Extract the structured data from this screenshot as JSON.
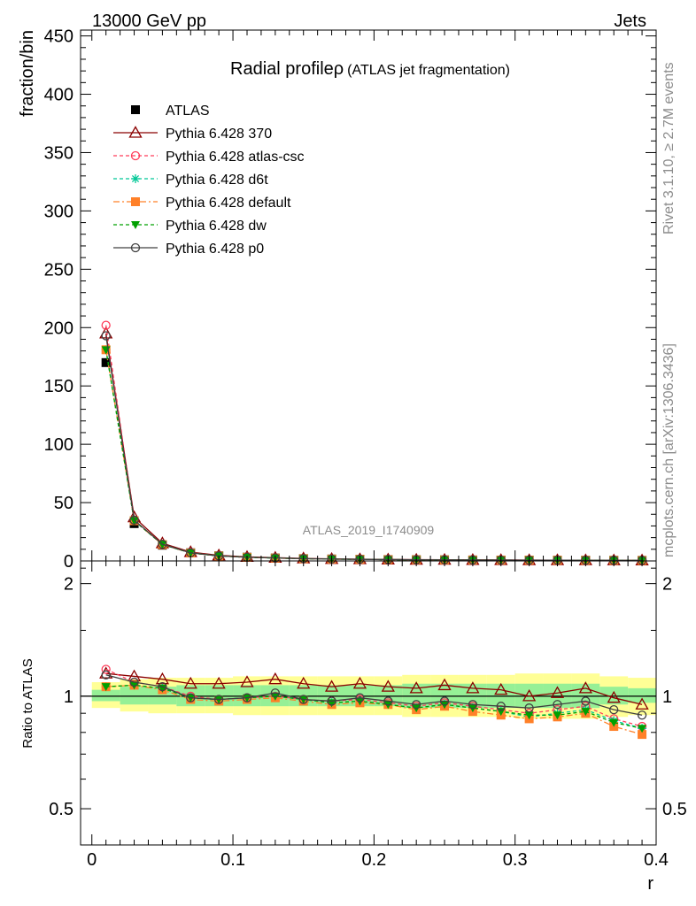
{
  "header": {
    "left": "13000 GeV pp",
    "right": "Jets",
    "side_top": "Rivet 3.1.10, ≥ 2.7M events",
    "side_bottom": "mcplots.cern.ch [arXiv:1306.3436]"
  },
  "chart_data": [
    {
      "type": "line",
      "panel": "main",
      "title": "Radial profile",
      "title_symbol": "ρ",
      "subtitle": "(ATLAS jet fragmentation)",
      "watermark": "ATLAS_2019_I1740909",
      "ylabel": "fraction/bin",
      "xlim": [
        -0.008,
        0.4
      ],
      "ylim": [
        0,
        455
      ],
      "yticks": [
        0,
        50,
        100,
        150,
        200,
        250,
        300,
        350,
        400,
        450
      ],
      "legend_position": "top-left",
      "x": [
        0.01,
        0.03,
        0.05,
        0.07,
        0.09,
        0.11,
        0.13,
        0.15,
        0.17,
        0.19,
        0.21,
        0.23,
        0.25,
        0.27,
        0.29,
        0.31,
        0.33,
        0.35,
        0.37,
        0.39
      ],
      "series": [
        {
          "name": "ATLAS",
          "color": "#000000",
          "marker": "square-filled",
          "dash": "",
          "values": [
            170,
            32,
            13.5,
            7.0,
            4.4,
            3.2,
            2.5,
            2.0,
            1.65,
            1.4,
            1.2,
            1.05,
            0.95,
            0.85,
            0.78,
            0.72,
            0.66,
            0.6,
            0.55,
            0.5
          ]
        },
        {
          "name": "Pythia 6.428 370",
          "color": "#8b0000",
          "marker": "triangle-open",
          "dash": "",
          "values": [
            195,
            37.5,
            15.2,
            7.6,
            4.8,
            3.5,
            2.8,
            2.2,
            1.75,
            1.5,
            1.27,
            1.1,
            1.02,
            0.9,
            0.82,
            0.72,
            0.68,
            0.64,
            0.55,
            0.48
          ]
        },
        {
          "name": "Pythia 6.428 atlas-csc",
          "color": "#ff3c5a",
          "marker": "circle-open",
          "dash": "4,3",
          "values": [
            202,
            35,
            14.3,
            7.0,
            4.3,
            3.15,
            2.5,
            1.95,
            1.6,
            1.38,
            1.16,
            0.99,
            0.92,
            0.8,
            0.73,
            0.66,
            0.62,
            0.58,
            0.5,
            0.42
          ]
        },
        {
          "name": "Pythia 6.428 d6t",
          "color": "#00c896",
          "marker": "star",
          "dash": "4,3",
          "values": [
            181,
            34.5,
            14.2,
            6.9,
            4.3,
            3.15,
            2.5,
            1.95,
            1.58,
            1.36,
            1.15,
            0.98,
            0.91,
            0.79,
            0.72,
            0.65,
            0.6,
            0.56,
            0.48,
            0.42
          ]
        },
        {
          "name": "Pythia 6.428 default",
          "color": "#ff8028",
          "marker": "square-filled",
          "dash": "7,3,2,3",
          "values": [
            181,
            34.5,
            14.0,
            6.8,
            4.25,
            3.1,
            2.45,
            1.93,
            1.56,
            1.34,
            1.14,
            0.97,
            0.89,
            0.77,
            0.7,
            0.63,
            0.58,
            0.54,
            0.46,
            0.4
          ]
        },
        {
          "name": "Pythia 6.428 dw",
          "color": "#00a000",
          "marker": "triangle-down-filled",
          "dash": "4,3",
          "values": [
            181,
            34.5,
            14.1,
            6.85,
            4.3,
            3.15,
            2.5,
            1.95,
            1.58,
            1.36,
            1.15,
            0.98,
            0.91,
            0.79,
            0.71,
            0.64,
            0.59,
            0.55,
            0.47,
            0.41
          ]
        },
        {
          "name": "Pythia 6.428 p0",
          "color": "#404040",
          "marker": "circle-open",
          "dash": "",
          "values": [
            193,
            35,
            14.3,
            6.9,
            4.3,
            3.15,
            2.55,
            1.96,
            1.6,
            1.39,
            1.17,
            1.0,
            0.93,
            0.81,
            0.74,
            0.67,
            0.63,
            0.58,
            0.51,
            0.45
          ]
        }
      ]
    },
    {
      "type": "line",
      "panel": "ratio",
      "ylabel": "Ratio to ATLAS",
      "xlabel": "r",
      "xlim": [
        -0.008,
        0.4
      ],
      "ylim": [
        0.4,
        2.3
      ],
      "yscale": "log",
      "yticks": [
        "0.5",
        "1",
        "2"
      ],
      "xticks": [
        "0",
        "0.1",
        "0.2",
        "0.3",
        "0.4"
      ],
      "x": [
        0.01,
        0.03,
        0.05,
        0.07,
        0.09,
        0.11,
        0.13,
        0.15,
        0.17,
        0.19,
        0.21,
        0.23,
        0.25,
        0.27,
        0.29,
        0.31,
        0.33,
        0.35,
        0.37,
        0.39
      ],
      "bands": [
        {
          "color": "#ffff96",
          "lo": [
            0.93,
            0.91,
            0.9,
            0.9,
            0.9,
            0.89,
            0.89,
            0.89,
            0.89,
            0.89,
            0.89,
            0.88,
            0.88,
            0.88,
            0.88,
            0.87,
            0.87,
            0.87,
            0.88,
            0.89
          ],
          "hi": [
            1.09,
            1.11,
            1.12,
            1.12,
            1.12,
            1.13,
            1.13,
            1.13,
            1.13,
            1.13,
            1.13,
            1.14,
            1.14,
            1.14,
            1.14,
            1.15,
            1.15,
            1.15,
            1.13,
            1.12
          ]
        },
        {
          "color": "#96f096",
          "lo": [
            0.97,
            0.95,
            0.95,
            0.94,
            0.94,
            0.94,
            0.94,
            0.94,
            0.94,
            0.94,
            0.94,
            0.93,
            0.93,
            0.93,
            0.93,
            0.93,
            0.93,
            0.93,
            0.95,
            0.96
          ],
          "hi": [
            1.04,
            1.06,
            1.06,
            1.07,
            1.07,
            1.07,
            1.07,
            1.07,
            1.07,
            1.07,
            1.07,
            1.08,
            1.08,
            1.08,
            1.08,
            1.08,
            1.08,
            1.08,
            1.06,
            1.05
          ]
        }
      ],
      "series": [
        {
          "name": "Pythia 6.428 370",
          "values": [
            1.15,
            1.13,
            1.11,
            1.08,
            1.08,
            1.09,
            1.11,
            1.08,
            1.06,
            1.08,
            1.06,
            1.05,
            1.07,
            1.05,
            1.04,
            1.0,
            1.02,
            1.05,
            0.99,
            0.95
          ]
        },
        {
          "name": "Pythia 6.428 atlas-csc",
          "values": [
            1.18,
            1.09,
            1.06,
            1.0,
            0.98,
            0.99,
            1.0,
            0.98,
            0.97,
            0.98,
            0.96,
            0.94,
            0.96,
            0.94,
            0.92,
            0.9,
            0.92,
            0.94,
            0.87,
            0.83
          ]
        },
        {
          "name": "Pythia 6.428 d6t",
          "values": [
            1.06,
            1.07,
            1.05,
            0.99,
            0.98,
            0.99,
            1.0,
            0.98,
            0.96,
            0.97,
            0.95,
            0.93,
            0.95,
            0.93,
            0.91,
            0.88,
            0.9,
            0.92,
            0.86,
            0.82
          ]
        },
        {
          "name": "Pythia 6.428 default",
          "values": [
            1.06,
            1.07,
            1.04,
            0.98,
            0.97,
            0.98,
            0.99,
            0.97,
            0.95,
            0.96,
            0.95,
            0.92,
            0.94,
            0.91,
            0.89,
            0.87,
            0.88,
            0.9,
            0.83,
            0.79
          ]
        },
        {
          "name": "Pythia 6.428 dw",
          "values": [
            1.06,
            1.07,
            1.05,
            0.99,
            0.98,
            0.99,
            1.0,
            0.98,
            0.96,
            0.97,
            0.95,
            0.93,
            0.95,
            0.93,
            0.91,
            0.89,
            0.89,
            0.91,
            0.85,
            0.82
          ]
        },
        {
          "name": "Pythia 6.428 p0",
          "values": [
            1.14,
            1.09,
            1.06,
            0.99,
            0.98,
            0.99,
            1.02,
            0.98,
            0.97,
            0.99,
            0.97,
            0.95,
            0.97,
            0.95,
            0.94,
            0.93,
            0.95,
            0.97,
            0.92,
            0.89
          ]
        }
      ]
    }
  ]
}
